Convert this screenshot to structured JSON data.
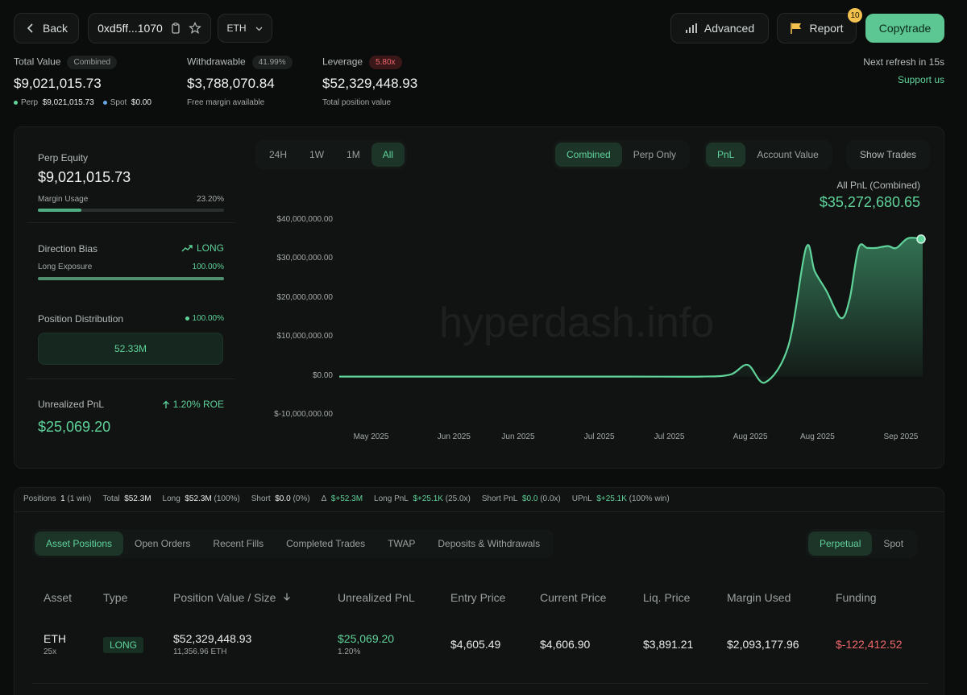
{
  "header": {
    "back_label": "Back",
    "address": "0xd5ff...1070",
    "asset_select": "ETH",
    "advanced_label": "Advanced",
    "report_label": "Report",
    "report_badge": "10",
    "copytrade_label": "Copytrade",
    "refresh_text": "Next refresh in 15s",
    "support_label": "Support us"
  },
  "stats": {
    "total_value": {
      "label": "Total Value",
      "pill": "Combined",
      "value": "$9,021,015.73",
      "perp_label": "Perp",
      "perp_value": "$9,021,015.73",
      "spot_label": "Spot",
      "spot_value": "$0.00"
    },
    "withdrawable": {
      "label": "Withdrawable",
      "pill": "41.99%",
      "value": "$3,788,070.84",
      "sub": "Free margin available"
    },
    "leverage": {
      "label": "Leverage",
      "pill": "5.80x",
      "value": "$52,329,448.93",
      "sub": "Total position value"
    }
  },
  "side": {
    "perp_equity_label": "Perp Equity",
    "perp_equity_value": "$9,021,015.73",
    "margin_usage_label": "Margin Usage",
    "margin_usage_value": "23.20%",
    "margin_usage_fraction": 0.232,
    "direction_label": "Direction Bias",
    "direction_value": "LONG",
    "long_exposure_label": "Long Exposure",
    "long_exposure_value": "100.00%",
    "long_exposure_fraction": 1.0,
    "distribution_label": "Position Distribution",
    "distribution_pct": "100.00%",
    "distribution_amount": "52.33M",
    "upnl_label": "Unrealized PnL",
    "upnl_roe": "1.20% ROE",
    "upnl_value": "$25,069.20"
  },
  "chart_controls": {
    "timeframes": [
      "24H",
      "1W",
      "1M",
      "All"
    ],
    "active_timeframe": "All",
    "modes": [
      "Combined",
      "Perp Only"
    ],
    "active_mode": "Combined",
    "metrics": [
      "PnL",
      "Account Value"
    ],
    "active_metric": "PnL",
    "show_trades_label": "Show Trades"
  },
  "watermark": "hyperdash.info",
  "chart_data": {
    "type": "area",
    "title": "All PnL (Combined)",
    "headline_value": "$35,272,680.65",
    "y_ticks": [
      "$40,000,000.00",
      "$30,000,000.00",
      "$20,000,000.00",
      "$10,000,000.00",
      "$0.00",
      "$-10,000,000.00"
    ],
    "ylim": [
      -10000000,
      40000000
    ],
    "x_ticks": [
      "May 2025",
      "Jun 2025",
      "Jun 2025",
      "Jul 2025",
      "Jul 2025",
      "Aug 2025",
      "Aug 2025",
      "Sep 2025"
    ],
    "x_tick_positions": [
      0.056,
      0.198,
      0.308,
      0.447,
      0.567,
      0.706,
      0.821,
      0.964
    ],
    "xlim": [
      0,
      1
    ],
    "x": [
      0,
      0.3,
      0.5,
      0.62,
      0.67,
      0.7,
      0.73,
      0.77,
      0.8,
      0.815,
      0.835,
      0.86,
      0.875,
      0.89,
      0.905,
      0.92,
      0.94,
      0.955,
      0.975,
      1.0
    ],
    "y": [
      0,
      0,
      0,
      0,
      500000,
      3000000,
      -1500000,
      8000000,
      33000000,
      27000000,
      22000000,
      15000000,
      20000000,
      33000000,
      33000000,
      33000000,
      33500000,
      33000000,
      35500000,
      35272680
    ]
  },
  "summary": {
    "positions_label": "Positions",
    "positions_value": "1",
    "positions_sub": "(1 win)",
    "total_label": "Total",
    "total_value": "$52.3M",
    "long_label": "Long",
    "long_value": "$52.3M",
    "long_sub": "(100%)",
    "short_label": "Short",
    "short_value": "$0.0",
    "short_sub": "(0%)",
    "delta_label": "Δ",
    "delta_value": "$+52.3M",
    "longpnl_label": "Long PnL",
    "longpnl_value": "$+25.1K",
    "longpnl_sub": "(25.0x)",
    "shortpnl_label": "Short PnL",
    "shortpnl_value": "$0.0",
    "shortpnl_sub": "(0.0x)",
    "upnl_label": "UPnL",
    "upnl_value": "$+25.1K",
    "upnl_sub": "(100% win)"
  },
  "tabs": [
    "Asset Positions",
    "Open Orders",
    "Recent Fills",
    "Completed Trades",
    "TWAP",
    "Deposits & Withdrawals"
  ],
  "active_tab": "Asset Positions",
  "market_tabs": [
    "Perpetual",
    "Spot"
  ],
  "active_market_tab": "Perpetual",
  "table": {
    "columns": [
      "Asset",
      "Type",
      "Position Value / Size",
      "Unrealized PnL",
      "Entry Price",
      "Current Price",
      "Liq. Price",
      "Margin Used",
      "Funding"
    ],
    "rows": [
      {
        "asset": "ETH",
        "leverage": "25x",
        "type": "LONG",
        "position_value": "$52,329,448.93",
        "size": "11,356.96 ETH",
        "upnl": "$25,069.20",
        "upnl_pct": "1.20%",
        "entry": "$4,605.49",
        "current": "$4,606.90",
        "liq": "$3,891.21",
        "margin": "$2,093,177.96",
        "funding": "$-122,412.52"
      }
    ]
  },
  "colors": {
    "accent": "#5fd39a",
    "negative": "#f0676b",
    "background": "#0b0d0c"
  }
}
